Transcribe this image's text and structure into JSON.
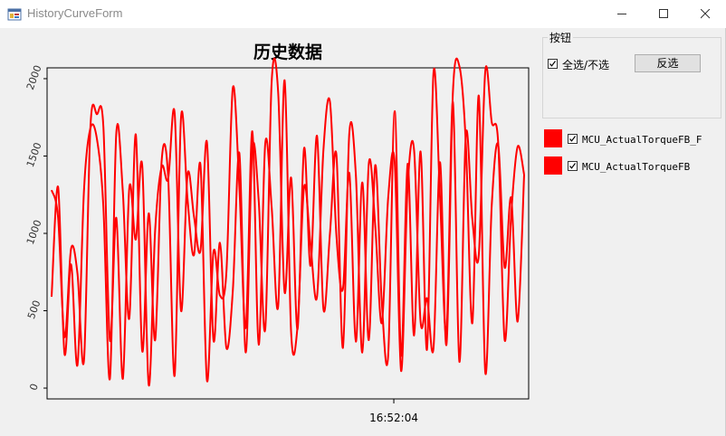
{
  "window": {
    "title": "HistoryCurveForm",
    "controls": [
      "minimize-icon",
      "maximize-icon",
      "close-icon"
    ]
  },
  "buttons_group": {
    "title": "按钮",
    "select_all": {
      "label": "全选/不选",
      "checked": true
    },
    "invert_label": "反选"
  },
  "series_list": [
    {
      "name": "MCU_ActualTorqueFB_F",
      "color": "#ff0000",
      "checked": true
    },
    {
      "name": "MCU_ActualTorqueFB",
      "color": "#ff0000",
      "checked": true
    }
  ],
  "chart_data": {
    "type": "line",
    "title": "历史数据",
    "xlabel": "",
    "ylabel": "",
    "ylim": [
      -70,
      2070
    ],
    "y_ticks": [
      0,
      500,
      1000,
      1500,
      2000
    ],
    "x_ticks": [
      {
        "label": "16:52:04",
        "at": 0.72
      }
    ],
    "grid": false,
    "line_color": "#ff0000",
    "series": [
      {
        "name": "MCU_ActualTorqueFB_F",
        "values": [
          590,
          1300,
          220,
          800,
          150,
          1280,
          1680,
          1610,
          1170,
          60,
          1650,
          1270,
          450,
          1640,
          240,
          1130,
          310,
          1470,
          1370,
          80,
          1750,
          1220,
          860,
          1440,
          50,
          880,
          600,
          750,
          1940,
          1300,
          390,
          1660,
          280,
          1580,
          1170,
          530,
          1990,
          360,
          400,
          1300,
          930,
          590,
          1540,
          1850,
          990,
          640,
          1390,
          300,
          1330,
          310,
          1440,
          560,
          210,
          1790,
          210,
          1450,
          340,
          1530,
          250,
          2040,
          1240,
          360,
          1850,
          170,
          1640,
          1090,
          860,
          2050,
          1720,
          1580,
          310,
          1120,
          1560,
          1380
        ]
      },
      {
        "name": "MCU_ActualTorqueFB",
        "values": [
          1280,
          1100,
          330,
          900,
          740,
          180,
          1690,
          1770,
          1690,
          310,
          1100,
          60,
          1290,
          960,
          1440,
          20,
          1020,
          1430,
          1350,
          1780,
          500,
          1380,
          1110,
          890,
          1590,
          310,
          940,
          260,
          630,
          1520,
          230,
          1540,
          1210,
          380,
          1980,
          1910,
          620,
          1360,
          380,
          1550,
          790,
          1630,
          510,
          1000,
          1510,
          260,
          1650,
          1380,
          230,
          1450,
          1050,
          420,
          1230,
          1460,
          110,
          1300,
          1540,
          430,
          580,
          260,
          1460,
          280,
          1910,
          2080,
          1580,
          420,
          1890,
          100,
          1180,
          1570,
          780,
          1230,
          430,
          1380
        ]
      }
    ]
  }
}
